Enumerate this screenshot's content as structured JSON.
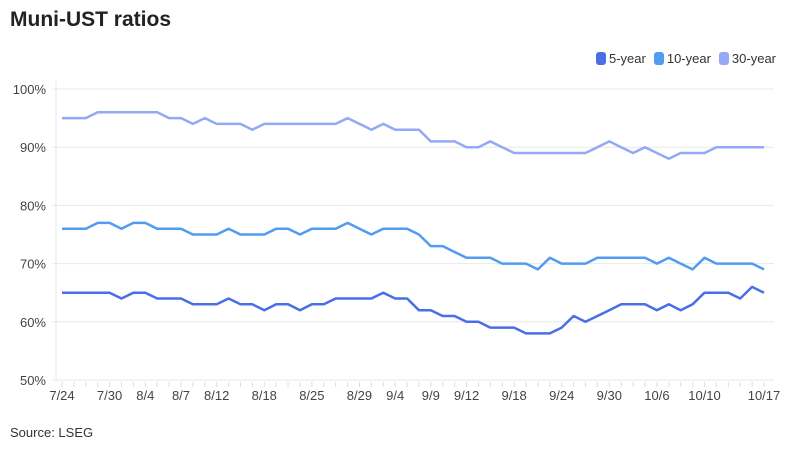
{
  "chart_data": {
    "type": "line",
    "title": "Muni-UST ratios",
    "source": "Source: LSEG",
    "xlabel": "",
    "ylabel": "",
    "ylim": [
      50,
      100
    ],
    "yticks": [
      50,
      60,
      70,
      80,
      90,
      100
    ],
    "ytick_labels": [
      "50%",
      "60%",
      "70%",
      "80%",
      "90%",
      "100%"
    ],
    "grid": true,
    "legend_position": "top-right",
    "x_labels": [
      {
        "label": "7/24",
        "index": 0
      },
      {
        "label": "7/30",
        "index": 4
      },
      {
        "label": "8/4",
        "index": 7
      },
      {
        "label": "8/7",
        "index": 10
      },
      {
        "label": "8/12",
        "index": 13
      },
      {
        "label": "8/18",
        "index": 17
      },
      {
        "label": "8/25",
        "index": 21
      },
      {
        "label": "8/29",
        "index": 25
      },
      {
        "label": "9/4",
        "index": 28
      },
      {
        "label": "9/9",
        "index": 31
      },
      {
        "label": "9/12",
        "index": 34
      },
      {
        "label": "9/18",
        "index": 38
      },
      {
        "label": "9/24",
        "index": 42
      },
      {
        "label": "9/30",
        "index": 46
      },
      {
        "label": "10/6",
        "index": 50
      },
      {
        "label": "10/10",
        "index": 54
      },
      {
        "label": "10/17",
        "index": 59
      }
    ],
    "series": [
      {
        "name": "5-year",
        "color": "#4a6ee8",
        "values": [
          65,
          65,
          65,
          65,
          65,
          64,
          65,
          65,
          64,
          64,
          64,
          63,
          63,
          63,
          64,
          63,
          63,
          62,
          63,
          63,
          62,
          63,
          63,
          64,
          64,
          64,
          64,
          65,
          64,
          64,
          62,
          62,
          61,
          61,
          60,
          60,
          59,
          59,
          59,
          58,
          58,
          58,
          59,
          61,
          60,
          61,
          62,
          63,
          63,
          63,
          62,
          63,
          62,
          63,
          65,
          65,
          65,
          64,
          66,
          65
        ]
      },
      {
        "name": "10-year",
        "color": "#4f9cf0",
        "values": [
          76,
          76,
          76,
          77,
          77,
          76,
          77,
          77,
          76,
          76,
          76,
          75,
          75,
          75,
          76,
          75,
          75,
          75,
          76,
          76,
          75,
          76,
          76,
          76,
          77,
          76,
          75,
          76,
          76,
          76,
          75,
          73,
          73,
          72,
          71,
          71,
          71,
          70,
          70,
          70,
          69,
          71,
          70,
          70,
          70,
          71,
          71,
          71,
          71,
          71,
          70,
          71,
          70,
          69,
          71,
          70,
          70,
          70,
          70,
          69
        ]
      },
      {
        "name": "30-year",
        "color": "#94a9f5",
        "values": [
          95,
          95,
          95,
          96,
          96,
          96,
          96,
          96,
          96,
          95,
          95,
          94,
          95,
          94,
          94,
          94,
          93,
          94,
          94,
          94,
          94,
          94,
          94,
          94,
          95,
          94,
          93,
          94,
          93,
          93,
          93,
          91,
          91,
          91,
          90,
          90,
          91,
          90,
          89,
          89,
          89,
          89,
          89,
          89,
          89,
          90,
          91,
          90,
          89,
          90,
          89,
          88,
          89,
          89,
          89,
          90,
          90,
          90,
          90,
          90
        ]
      }
    ]
  }
}
